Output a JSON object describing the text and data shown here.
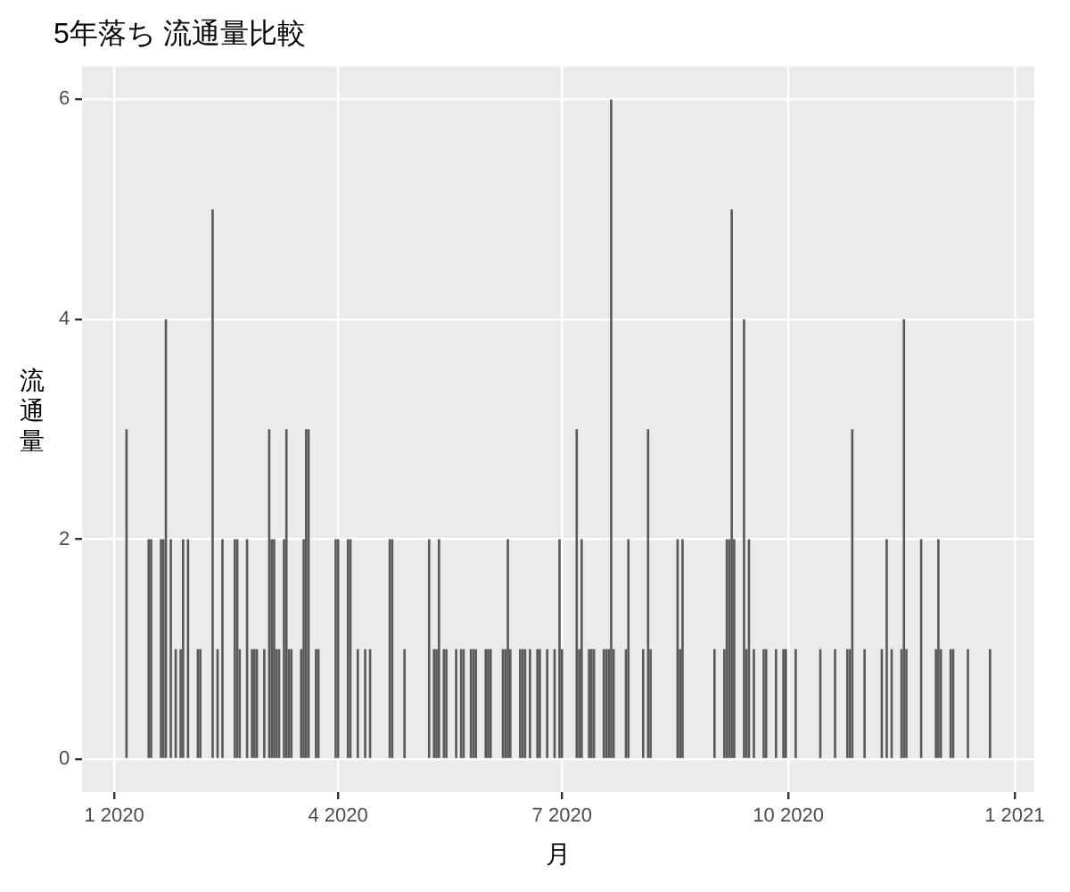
{
  "chart_data": {
    "type": "bar",
    "title": "5年落ち 流通量比較",
    "xlabel": "月",
    "ylabel": "流通量",
    "color": "#595959",
    "grid": true,
    "legend": false,
    "x": [
      "2020-01-06",
      "2020-01-15",
      "2020-01-16",
      "2020-01-20",
      "2020-01-21",
      "2020-01-22",
      "2020-01-24",
      "2020-01-26",
      "2020-01-28",
      "2020-01-29",
      "2020-01-31",
      "2020-02-04",
      "2020-02-05",
      "2020-02-10",
      "2020-02-12",
      "2020-02-14",
      "2020-02-19",
      "2020-02-20",
      "2020-02-21",
      "2020-02-24",
      "2020-02-26",
      "2020-02-27",
      "2020-02-28",
      "2020-03-02",
      "2020-03-04",
      "2020-03-05",
      "2020-03-06",
      "2020-03-07",
      "2020-03-08",
      "2020-03-10",
      "2020-03-11",
      "2020-03-12",
      "2020-03-13",
      "2020-03-17",
      "2020-03-18",
      "2020-03-19",
      "2020-03-20",
      "2020-03-23",
      "2020-03-24",
      "2020-03-31",
      "2020-04-01",
      "2020-04-05",
      "2020-04-06",
      "2020-04-09",
      "2020-04-12",
      "2020-04-14",
      "2020-04-22",
      "2020-04-23",
      "2020-04-28",
      "2020-05-08",
      "2020-05-10",
      "2020-05-11",
      "2020-05-12",
      "2020-05-14",
      "2020-05-15",
      "2020-05-19",
      "2020-05-21",
      "2020-05-22",
      "2020-05-25",
      "2020-05-26",
      "2020-05-27",
      "2020-05-31",
      "2020-06-01",
      "2020-06-02",
      "2020-06-07",
      "2020-06-08",
      "2020-06-09",
      "2020-06-10",
      "2020-06-14",
      "2020-06-15",
      "2020-06-16",
      "2020-06-18",
      "2020-06-21",
      "2020-06-22",
      "2020-06-25",
      "2020-06-28",
      "2020-06-30",
      "2020-07-01",
      "2020-07-07",
      "2020-07-08",
      "2020-07-09",
      "2020-07-12",
      "2020-07-13",
      "2020-07-14",
      "2020-07-18",
      "2020-07-19",
      "2020-07-20",
      "2020-07-21",
      "2020-07-22",
      "2020-07-27",
      "2020-07-28",
      "2020-08-03",
      "2020-08-05",
      "2020-08-06",
      "2020-08-17",
      "2020-08-18",
      "2020-08-19",
      "2020-09-01",
      "2020-09-05",
      "2020-09-06",
      "2020-09-07",
      "2020-09-08",
      "2020-09-09",
      "2020-09-13",
      "2020-09-14",
      "2020-09-15",
      "2020-09-17",
      "2020-09-21",
      "2020-09-22",
      "2020-09-26",
      "2020-09-29",
      "2020-09-30",
      "2020-10-04",
      "2020-10-14",
      "2020-10-20",
      "2020-10-25",
      "2020-10-26",
      "2020-10-27",
      "2020-11-01",
      "2020-11-08",
      "2020-11-10",
      "2020-11-12",
      "2020-11-16",
      "2020-11-17",
      "2020-11-18",
      "2020-11-24",
      "2020-11-30",
      "2020-12-01",
      "2020-12-02",
      "2020-12-06",
      "2020-12-07",
      "2020-12-13",
      "2020-12-22"
    ],
    "values": [
      3,
      2,
      2,
      2,
      2,
      4,
      2,
      1,
      1,
      2,
      2,
      1,
      1,
      5,
      1,
      2,
      2,
      2,
      1,
      2,
      1,
      1,
      1,
      1,
      3,
      2,
      2,
      1,
      1,
      2,
      3,
      1,
      1,
      1,
      2,
      3,
      3,
      1,
      1,
      2,
      2,
      2,
      2,
      1,
      1,
      1,
      2,
      2,
      1,
      2,
      1,
      1,
      2,
      1,
      1,
      1,
      1,
      1,
      1,
      1,
      1,
      1,
      1,
      1,
      1,
      1,
      2,
      1,
      1,
      1,
      1,
      1,
      1,
      1,
      1,
      1,
      2,
      1,
      3,
      1,
      2,
      1,
      1,
      1,
      1,
      1,
      1,
      6,
      1,
      1,
      2,
      1,
      3,
      1,
      2,
      1,
      2,
      1,
      1,
      2,
      2,
      5,
      2,
      4,
      1,
      2,
      1,
      1,
      1,
      1,
      1,
      1,
      1,
      1,
      1,
      1,
      1,
      3,
      1,
      1,
      2,
      1,
      1,
      4,
      1,
      2,
      1,
      2,
      1,
      1,
      1,
      1,
      1
    ],
    "xlim": [
      "2019-12-19",
      "2021-01-09"
    ],
    "xticks": [
      {
        "value": "2020-01-01",
        "label": "1 2020"
      },
      {
        "value": "2020-04-01",
        "label": "4 2020"
      },
      {
        "value": "2020-07-01",
        "label": "7 2020"
      },
      {
        "value": "2020-10-01",
        "label": "10 2020"
      },
      {
        "value": "2021-01-01",
        "label": "1 2021"
      }
    ],
    "ylim": [
      -0.3,
      6.3
    ],
    "yticks": [
      0,
      2,
      4,
      6
    ]
  }
}
